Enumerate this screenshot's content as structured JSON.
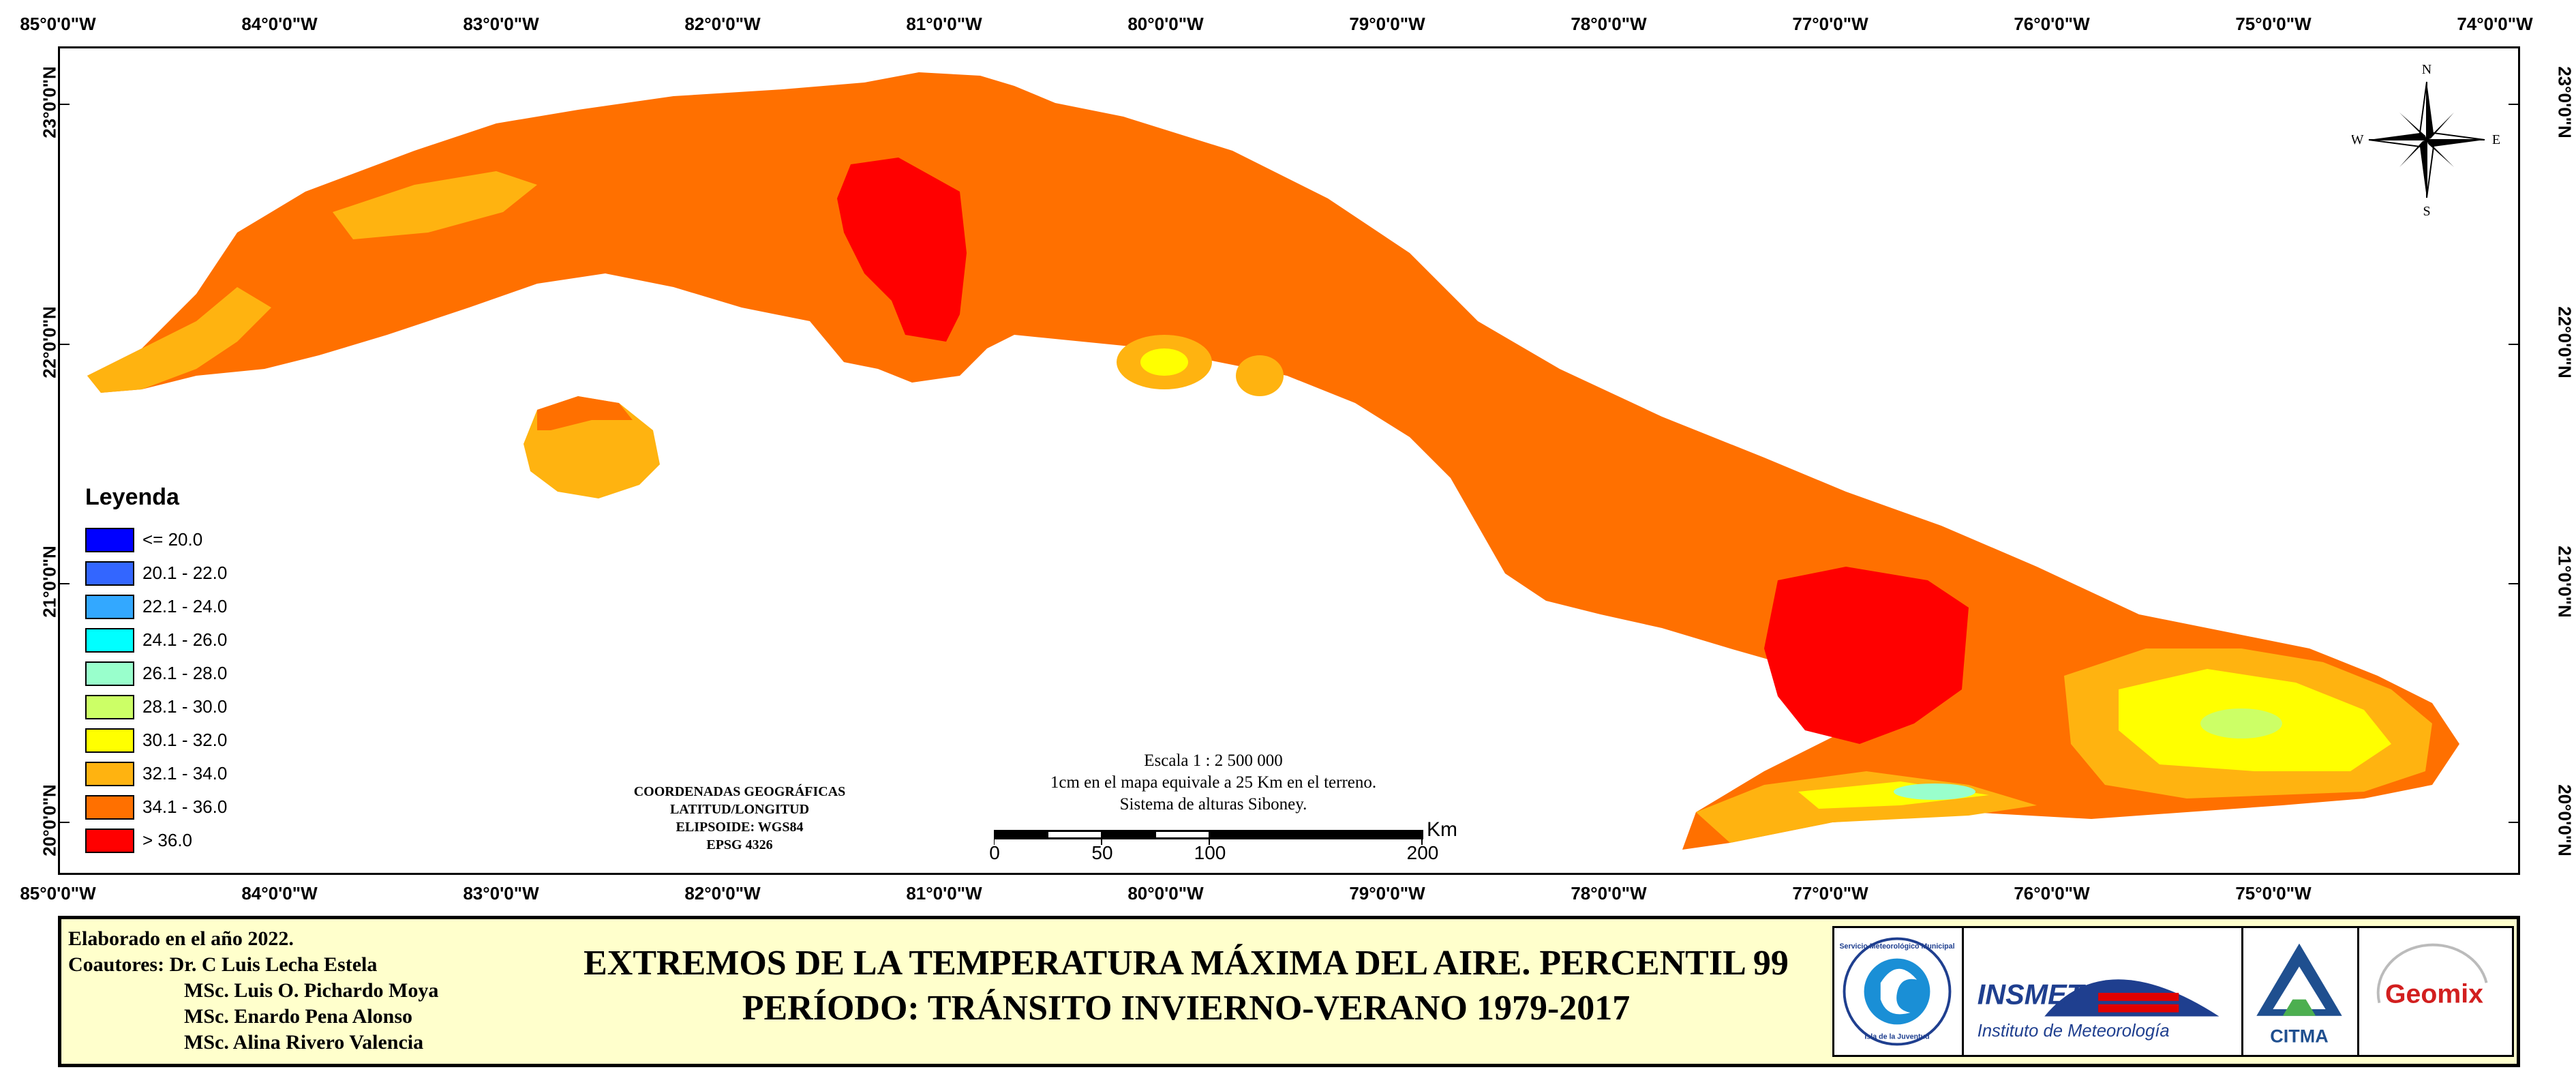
{
  "map": {
    "top_longitudes": [
      "85°0'0\"W",
      "84°0'0\"W",
      "83°0'0\"W",
      "82°0'0\"W",
      "81°0'0\"W",
      "80°0'0\"W",
      "79°0'0\"W",
      "78°0'0\"W",
      "77°0'0\"W",
      "76°0'0\"W",
      "75°0'0\"W",
      "74°0'0\"W"
    ],
    "bottom_longitudes": [
      "85°0'0\"W",
      "84°0'0\"W",
      "83°0'0\"W",
      "82°0'0\"W",
      "81°0'0\"W",
      "80°0'0\"W",
      "79°0'0\"W",
      "78°0'0\"W",
      "77°0'0\"W",
      "76°0'0\"W",
      "75°0'0\"W"
    ],
    "latitudes": [
      "23°0'0\"N",
      "22°0'0\"N",
      "21°0'0\"N",
      "20°0'0\"N"
    ],
    "compass": {
      "n": "N",
      "s": "S",
      "e": "E",
      "w": "W"
    }
  },
  "legend": {
    "title": "Leyenda",
    "items": [
      {
        "label": "<= 20.0",
        "color": "#0000ff"
      },
      {
        "label": "20.1 - 22.0",
        "color": "#3366ff"
      },
      {
        "label": "22.1 - 24.0",
        "color": "#33a8ff"
      },
      {
        "label": "24.1 - 26.0",
        "color": "#00ffff"
      },
      {
        "label": "26.1 - 28.0",
        "color": "#99ffcc"
      },
      {
        "label": "28.1 - 30.0",
        "color": "#ccff66"
      },
      {
        "label": "30.1 - 32.0",
        "color": "#ffff00"
      },
      {
        "label": "32.1 - 34.0",
        "color": "#ffb310"
      },
      {
        "label": "34.1 - 36.0",
        "color": "#ff7000"
      },
      {
        "label": "> 36.0",
        "color": "#ff0000"
      }
    ]
  },
  "coordinates_block": {
    "line1": "COORDENADAS GEOGRÁFICAS",
    "line2": "LATITUD/LONGITUD",
    "line3": "ELIPSOIDE: WGS84",
    "line4": "EPSG 4326"
  },
  "scale": {
    "line1": "Escala 1 : 2 500 000",
    "line2": "1cm en el mapa equivale a 25 Km en el terreno.",
    "line3": "Sistema de alturas Siboney.",
    "ticks": [
      "0",
      "50",
      "100",
      "200"
    ],
    "unit": "Km"
  },
  "credits": {
    "elaborated": "Elaborado en el año 2022.",
    "coauthors_label": "Coautores: Dr. C Luis Lecha Estela",
    "author2": "MSc. Luis O. Pichardo Moya",
    "author3": "MSc. Enardo Pena Alonso",
    "author4": "MSc. Alina Rivero Valencia"
  },
  "title": {
    "line1": "EXTREMOS DE LA TEMPERATURA MÁXIMA DEL AIRE. PERCENTIL 99",
    "line2": "PERÍODO: TRÁNSITO INVIERNO-VERANO 1979-2017"
  },
  "logos": {
    "smp_top": "Servicio Meteorológico Municipal",
    "smp_bottom": "Isla de la Juventud",
    "insmet_name": "INSMET",
    "insmet_sub": "Instituto de Meteorología",
    "citma": "CITMA",
    "geomix": "Geomix"
  }
}
